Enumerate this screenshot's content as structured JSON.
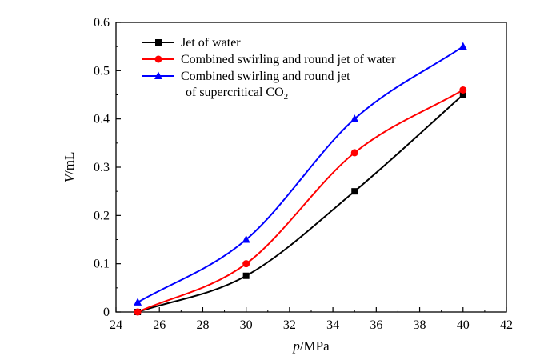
{
  "chart_data": {
    "type": "line",
    "xlabel": {
      "italic": "p",
      "rest": "/MPa"
    },
    "ylabel": {
      "italic": "V",
      "rest": "/mL"
    },
    "xlim": [
      24,
      42
    ],
    "ylim": [
      0,
      0.6
    ],
    "xticks": [
      "24",
      "26",
      "28",
      "30",
      "32",
      "34",
      "36",
      "38",
      "40",
      "42"
    ],
    "yticks": [
      "0",
      "0.1",
      "0.2",
      "0.3",
      "0.4",
      "0.5",
      "0.6"
    ],
    "grid": false,
    "legend_position": "top-left",
    "series": [
      {
        "name": "Jet of water",
        "legend_lines": [
          "Jet of water"
        ],
        "marker": "square",
        "color": "#000000",
        "x": [
          25,
          30,
          35,
          40
        ],
        "y": [
          0.0,
          0.075,
          0.25,
          0.45
        ]
      },
      {
        "name": "Combined swirling and round jet of water",
        "legend_lines": [
          "Combined swirling and round jet of water"
        ],
        "marker": "circle",
        "color": "#ff0000",
        "x": [
          25,
          30,
          35,
          40
        ],
        "y": [
          0.0,
          0.1,
          0.33,
          0.46
        ]
      },
      {
        "name": "Combined swirling and round jet of supercritical CO2",
        "legend_lines": [
          "Combined swirling and round jet",
          "of supercritical  CO"
        ],
        "legend_subscript": "2",
        "marker": "triangle",
        "color": "#0000ff",
        "x": [
          25,
          30,
          35,
          40
        ],
        "y": [
          0.02,
          0.15,
          0.4,
          0.55
        ]
      }
    ]
  }
}
